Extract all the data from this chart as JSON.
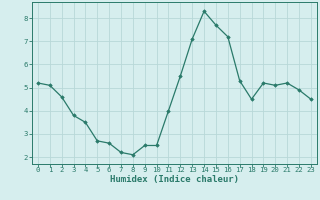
{
  "xlabel": "Humidex (Indice chaleur)",
  "ylabel": "",
  "x": [
    0,
    1,
    2,
    3,
    4,
    5,
    6,
    7,
    8,
    9,
    10,
    11,
    12,
    13,
    14,
    15,
    16,
    17,
    18,
    19,
    20,
    21,
    22,
    23
  ],
  "y": [
    5.2,
    5.1,
    4.6,
    3.8,
    3.5,
    2.7,
    2.6,
    2.2,
    2.1,
    2.5,
    2.5,
    4.0,
    5.5,
    7.1,
    8.3,
    7.7,
    7.2,
    5.3,
    4.5,
    5.2,
    5.1,
    5.2,
    4.9,
    4.5
  ],
  "line_color": "#2a7a6a",
  "marker": "D",
  "marker_size": 1.8,
  "bg_color": "#d6eeee",
  "grid_color": "#b8d8d8",
  "ylim": [
    1.7,
    8.7
  ],
  "xlim": [
    -0.5,
    23.5
  ],
  "yticks": [
    2,
    3,
    4,
    5,
    6,
    7,
    8
  ],
  "xticks": [
    0,
    1,
    2,
    3,
    4,
    5,
    6,
    7,
    8,
    9,
    10,
    11,
    12,
    13,
    14,
    15,
    16,
    17,
    18,
    19,
    20,
    21,
    22,
    23
  ],
  "tick_fontsize": 5.2,
  "xlabel_fontsize": 6.5,
  "axis_color": "#2a7a6a",
  "spine_color": "#2a7a6a",
  "linewidth": 0.9
}
